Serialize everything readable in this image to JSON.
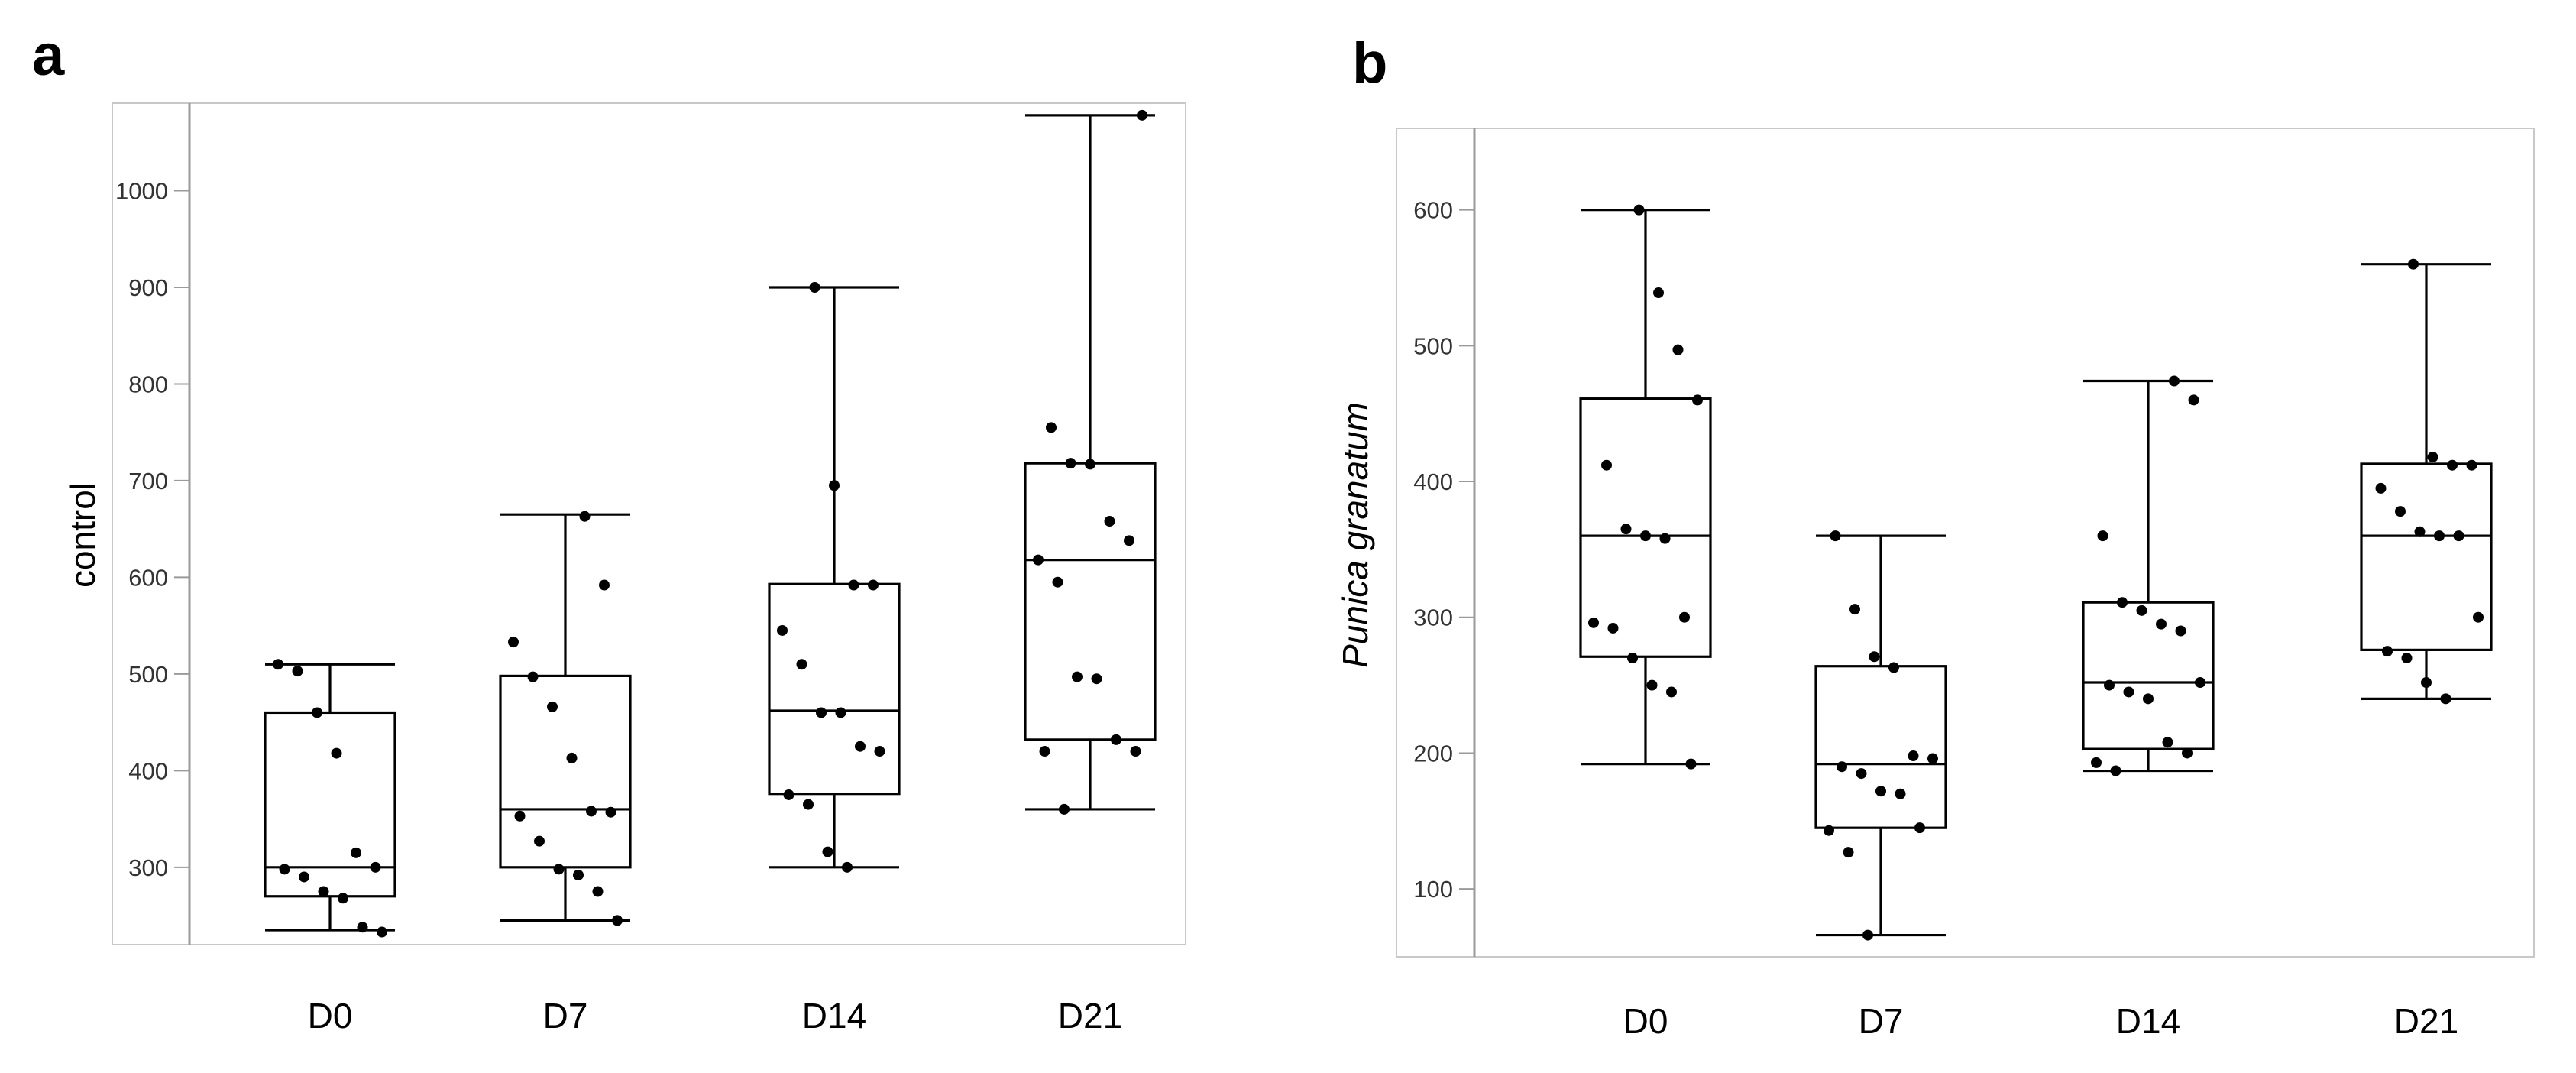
{
  "chart_data": [
    {
      "panel": "a",
      "type": "box",
      "title": "",
      "xlabel": "",
      "ylabel": "control",
      "ylabel_italic": false,
      "categories": [
        "D0",
        "D7",
        "D14",
        "D21"
      ],
      "ylim": [
        220,
        1085
      ],
      "yticks": [
        300,
        400,
        500,
        600,
        700,
        800,
        900,
        1000
      ],
      "boxes": [
        {
          "category": "D0",
          "min": 235,
          "q1": 270,
          "median": 300,
          "q3": 460,
          "max": 510,
          "points": [
            510,
            503,
            460,
            418,
            315,
            300,
            298,
            290,
            275,
            268,
            238,
            233
          ]
        },
        {
          "category": "D7",
          "min": 245,
          "q1": 300,
          "median": 360,
          "q3": 498,
          "max": 665,
          "points": [
            663,
            592,
            533,
            497,
            466,
            413,
            358,
            357,
            353,
            327,
            298,
            292,
            275,
            245
          ]
        },
        {
          "category": "D14",
          "min": 300,
          "q1": 376,
          "median": 462,
          "q3": 593,
          "max": 900,
          "points": [
            900,
            695,
            592,
            592,
            545,
            510,
            460,
            460,
            425,
            420,
            375,
            365,
            316,
            300
          ]
        },
        {
          "category": "D21",
          "min": 360,
          "q1": 432,
          "median": 618,
          "q3": 718,
          "max": 1078,
          "points": [
            1078,
            755,
            718,
            717,
            658,
            638,
            618,
            595,
            497,
            495,
            432,
            420,
            420,
            360
          ]
        }
      ]
    },
    {
      "panel": "b",
      "type": "box",
      "title": "",
      "xlabel": "",
      "ylabel": "Punica granatum",
      "ylabel_italic": true,
      "categories": [
        "D0",
        "D7",
        "D14",
        "D21"
      ],
      "ylim": [
        50,
        660
      ],
      "yticks": [
        100,
        200,
        300,
        400,
        500,
        600
      ],
      "boxes": [
        {
          "category": "D0",
          "min": 192,
          "q1": 271,
          "median": 360,
          "q3": 461,
          "max": 600,
          "points": [
            600,
            539,
            497,
            460,
            412,
            365,
            360,
            358,
            300,
            296,
            292,
            270,
            250,
            245,
            192
          ]
        },
        {
          "category": "D7",
          "min": 66,
          "q1": 145,
          "median": 192,
          "q3": 264,
          "max": 360,
          "points": [
            360,
            306,
            271,
            263,
            198,
            196,
            190,
            185,
            172,
            170,
            145,
            143,
            127,
            66
          ]
        },
        {
          "category": "D14",
          "min": 187,
          "q1": 203,
          "median": 252,
          "q3": 311,
          "max": 474,
          "points": [
            474,
            460,
            360,
            311,
            305,
            295,
            290,
            252,
            250,
            245,
            240,
            208,
            200,
            193,
            187
          ]
        },
        {
          "category": "D21",
          "min": 240,
          "q1": 276,
          "median": 360,
          "q3": 413,
          "max": 560,
          "points": [
            560,
            418,
            412,
            412,
            395,
            378,
            363,
            360,
            360,
            300,
            275,
            270,
            252,
            240
          ]
        }
      ]
    }
  ]
}
